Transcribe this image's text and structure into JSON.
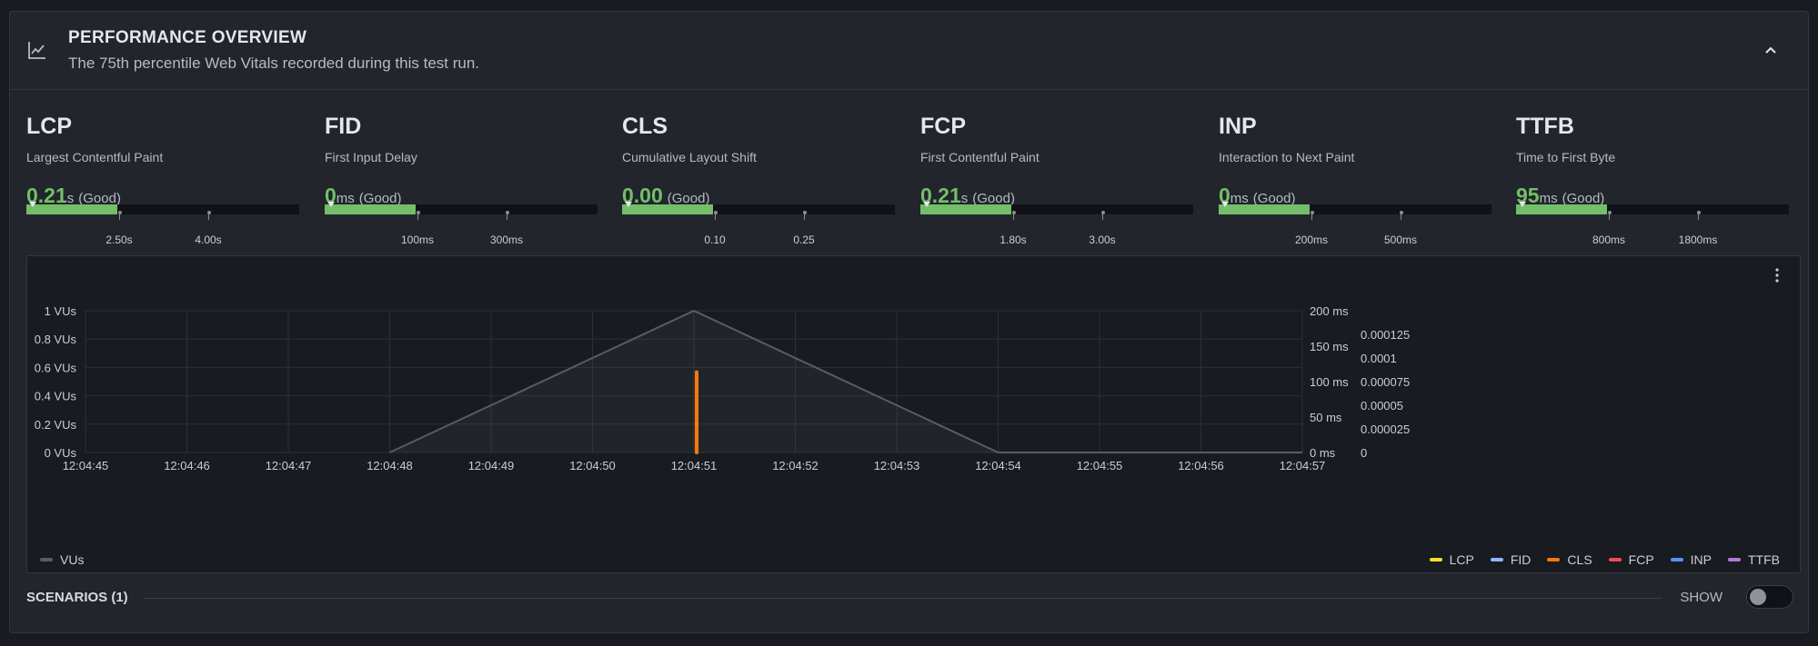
{
  "header": {
    "title": "PERFORMANCE OVERVIEW",
    "subtitle": "The 75th percentile Web Vitals recorded during this test run.",
    "icon": "chart-line-icon",
    "collapse_icon": "chevron-up-icon"
  },
  "vitals": [
    {
      "name": "LCP",
      "desc": "Largest Contentful Paint",
      "value": "0.21",
      "unit": "s",
      "status": "(Good)",
      "ticks": [
        "2.50s",
        "4.00s"
      ]
    },
    {
      "name": "FID",
      "desc": "First Input Delay",
      "value": "0",
      "unit": "ms",
      "status": "(Good)",
      "ticks": [
        "100ms",
        "300ms"
      ]
    },
    {
      "name": "CLS",
      "desc": "Cumulative Layout Shift",
      "value": "0.00",
      "unit": "",
      "status": "(Good)",
      "ticks": [
        "0.10",
        "0.25"
      ]
    },
    {
      "name": "FCP",
      "desc": "First Contentful Paint",
      "value": "0.21",
      "unit": "s",
      "status": "(Good)",
      "ticks": [
        "1.80s",
        "3.00s"
      ]
    },
    {
      "name": "INP",
      "desc": "Interaction to Next Paint",
      "value": "0",
      "unit": "ms",
      "status": "(Good)",
      "ticks": [
        "200ms",
        "500ms"
      ]
    },
    {
      "name": "TTFB",
      "desc": "Time to First Byte",
      "value": "95",
      "unit": "ms",
      "status": "(Good)",
      "ticks": [
        "800ms",
        "1800ms"
      ]
    }
  ],
  "colors": {
    "good": "#73bf69",
    "vus": "#5a5c63",
    "LCP": "#fade2a",
    "FID": "#8ab8ff",
    "CLS": "#ff780a",
    "FCP": "#f2495c",
    "INP": "#5794f2",
    "TTFB": "#b877d9"
  },
  "chart_data": {
    "type": "line",
    "x": [
      "12:04:45",
      "12:04:46",
      "12:04:47",
      "12:04:48",
      "12:04:49",
      "12:04:50",
      "12:04:51",
      "12:04:52",
      "12:04:53",
      "12:04:54",
      "12:04:55",
      "12:04:56",
      "12:04:57"
    ],
    "y_left_ticks": [
      "0 VUs",
      "0.2 VUs",
      "0.4 VUs",
      "0.6 VUs",
      "0.8 VUs",
      "1 VUs"
    ],
    "y_ms_ticks": [
      "0 ms",
      "50 ms",
      "100 ms",
      "150 ms",
      "200 ms"
    ],
    "y_cls_ticks": [
      "0",
      "0.000025",
      "0.00005",
      "0.000075",
      "0.0001",
      "0.000125"
    ],
    "ylim_vus": [
      0,
      1
    ],
    "ylim_ms": [
      0,
      200
    ],
    "series": [
      {
        "name": "VUs",
        "axis": "vus",
        "points": [
          [
            "12:04:48",
            0
          ],
          [
            "12:04:51",
            1
          ],
          [
            "12:04:54",
            0
          ],
          [
            "12:04:57",
            0
          ]
        ]
      },
      {
        "name": "CLS",
        "axis": "cls",
        "points": [
          [
            "12:04:51",
            0
          ],
          [
            "12:04:51",
            8.5e-05
          ]
        ]
      }
    ],
    "legend_left": [
      "VUs"
    ],
    "legend_right": [
      "LCP",
      "FID",
      "CLS",
      "FCP",
      "INP",
      "TTFB"
    ]
  },
  "scenarios": {
    "label": "SCENARIOS (1)",
    "toggle_label": "SHOW",
    "toggle_on": false
  },
  "chart_menu_icon": "kebab-menu-icon"
}
